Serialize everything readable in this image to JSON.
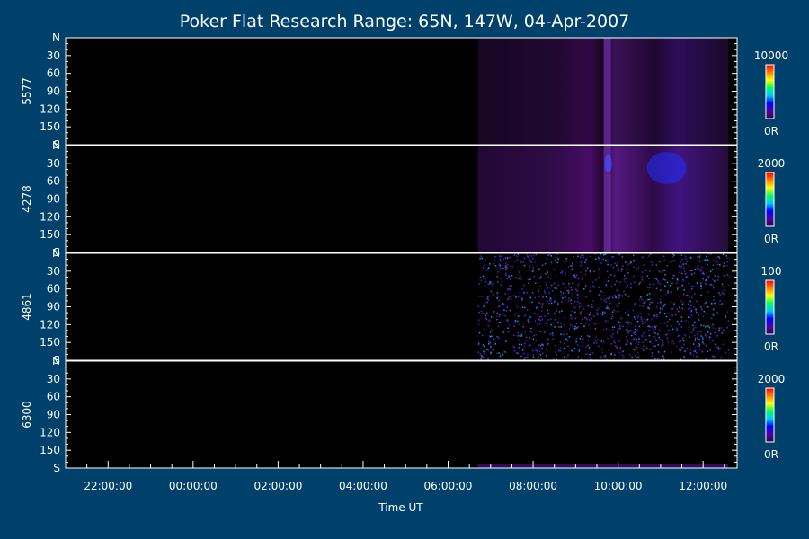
{
  "chart_data": {
    "type": "heatmap",
    "title": "Poker Flat Research Range: 65N, 147W, 04-Apr-2007",
    "xlabel": "Time UT",
    "x_ticks": [
      "22:00:00",
      "00:00:00",
      "02:00:00",
      "04:00:00",
      "06:00:00",
      "08:00:00",
      "10:00:00",
      "12:00:00"
    ],
    "x_range_hours": [
      21.0,
      36.8
    ],
    "x_tick_hours": [
      22,
      24,
      26,
      28,
      30,
      32,
      34,
      36
    ],
    "data_start_hour": 30.7,
    "y_ticks": [
      "N",
      "30",
      "60",
      "90",
      "120",
      "150",
      "S"
    ],
    "y_tick_values": [
      0,
      30,
      60,
      90,
      120,
      150,
      180
    ],
    "y_range": [
      0,
      180
    ],
    "panels": [
      {
        "label": "5577",
        "scale_max": 10000,
        "scale_max_label": "10000",
        "scale_min_label": "0R"
      },
      {
        "label": "4278",
        "scale_max": 2000,
        "scale_max_label": "2000",
        "scale_min_label": "0R"
      },
      {
        "label": "4861",
        "scale_max": 100,
        "scale_max_label": "100",
        "scale_min_label": "0R"
      },
      {
        "label": "6300",
        "scale_max": 2000,
        "scale_max_label": "2000",
        "scale_min_label": "0R"
      }
    ],
    "colormap": [
      "#3a0050",
      "#4a00a0",
      "#0000ff",
      "#00c8ff",
      "#00ff60",
      "#ffff00",
      "#ff8000",
      "#ff0000"
    ],
    "background": "#00416b",
    "plot_background": "#000000",
    "axis_color": "#ffffff"
  }
}
